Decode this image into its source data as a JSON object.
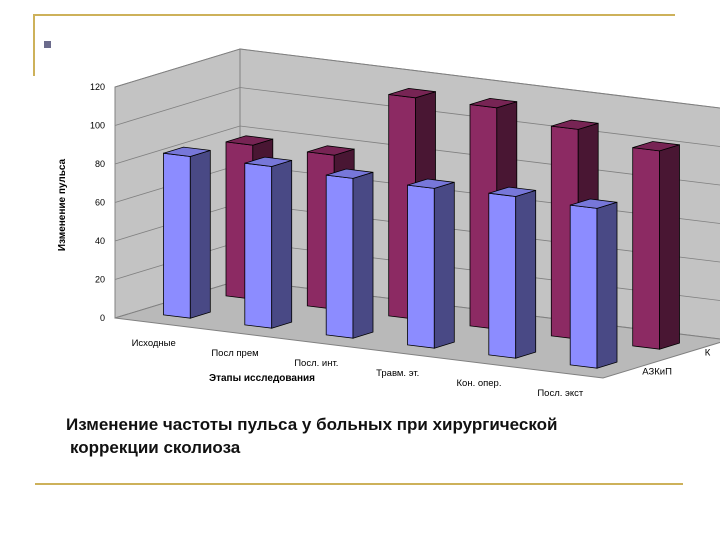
{
  "slide": {
    "caption_line1": "Изменение частоты пульса у больных при хирургической",
    "caption_line2": "коррекции сколиоза"
  },
  "colors": {
    "accent_rule": "#cdb15a",
    "bullet": "#6b6b8c",
    "series_front": "#8c8cff",
    "series_back": "#8c2a63"
  },
  "chart_data": {
    "type": "bar",
    "subtype": "3d-clustered-depth",
    "title": "",
    "xlabel": "Этапы исследования",
    "ylabel": "Изменение пульса",
    "ylim": [
      0,
      120
    ],
    "yticks": [
      0,
      20,
      40,
      60,
      80,
      100,
      120
    ],
    "grid": true,
    "legend": "none",
    "categories": [
      "Исходные",
      "Посл прем",
      "Посл. инт.",
      "Травм. эт.",
      "Кон. опер.",
      "Посл. экст"
    ],
    "series": [
      {
        "name": "К",
        "values": [
          80,
          80,
          115,
          115,
          109,
          103
        ]
      },
      {
        "name": "АЗКиП",
        "values": [
          84,
          84,
          83,
          83,
          84,
          83
        ]
      }
    ]
  }
}
